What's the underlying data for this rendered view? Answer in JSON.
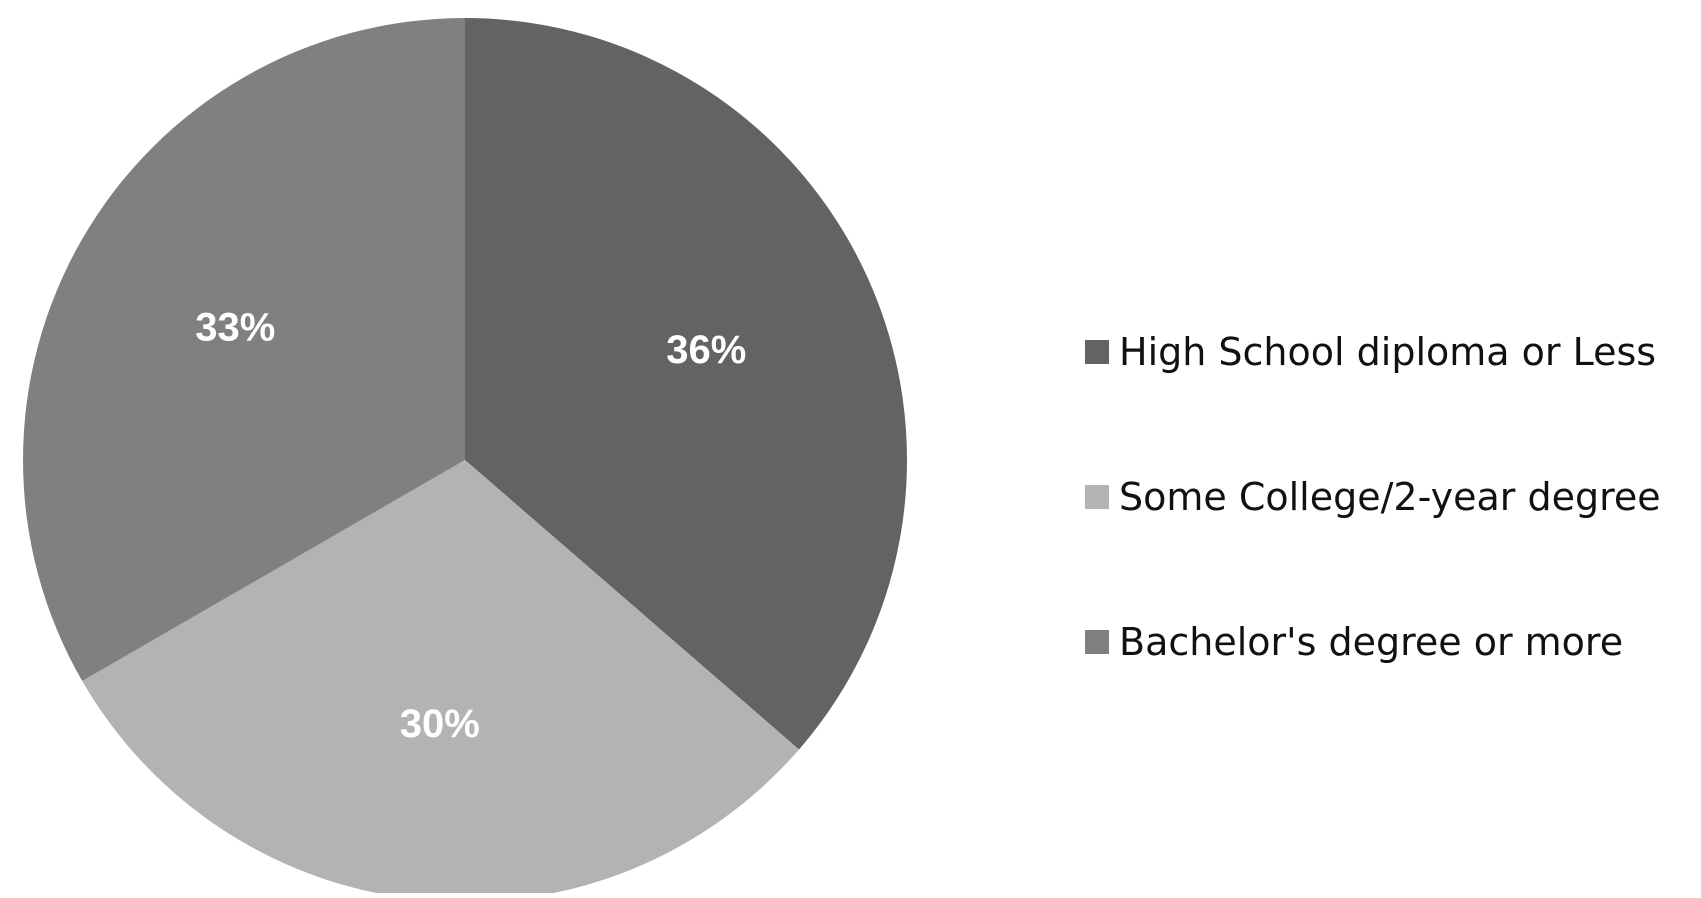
{
  "chart_data": {
    "type": "pie",
    "title": "",
    "slices": [
      {
        "name": "High School diploma or Less",
        "value": 36,
        "label": "36%",
        "color": "#636363"
      },
      {
        "name": "Some College/2-year degree",
        "value": 30,
        "label": "30%",
        "color": "#b3b3b3"
      },
      {
        "name": "Bachelor's degree or more",
        "value": 33,
        "label": "33%",
        "color": "#808080"
      }
    ],
    "start_angle": "12 o'clock",
    "direction": "clockwise",
    "legend": {
      "placement": "right",
      "entries": [
        "High School diploma or Less",
        "Some College/2-year degree",
        "Bachelor's degree or more"
      ]
    }
  }
}
